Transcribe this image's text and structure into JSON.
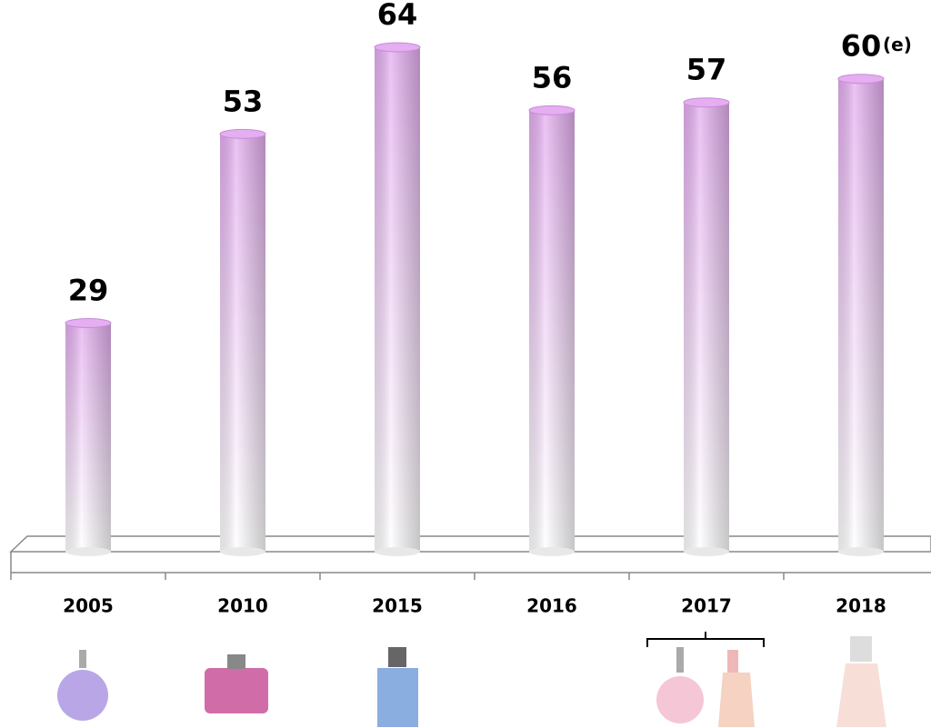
{
  "chart_data": {
    "type": "bar",
    "categories": [
      "2005",
      "2010",
      "2015",
      "2016",
      "2017",
      "2018"
    ],
    "values": [
      29,
      53,
      64,
      56,
      57,
      60
    ],
    "annotations": [
      "(e)"
    ],
    "color": "#e4aef0"
  }
}
